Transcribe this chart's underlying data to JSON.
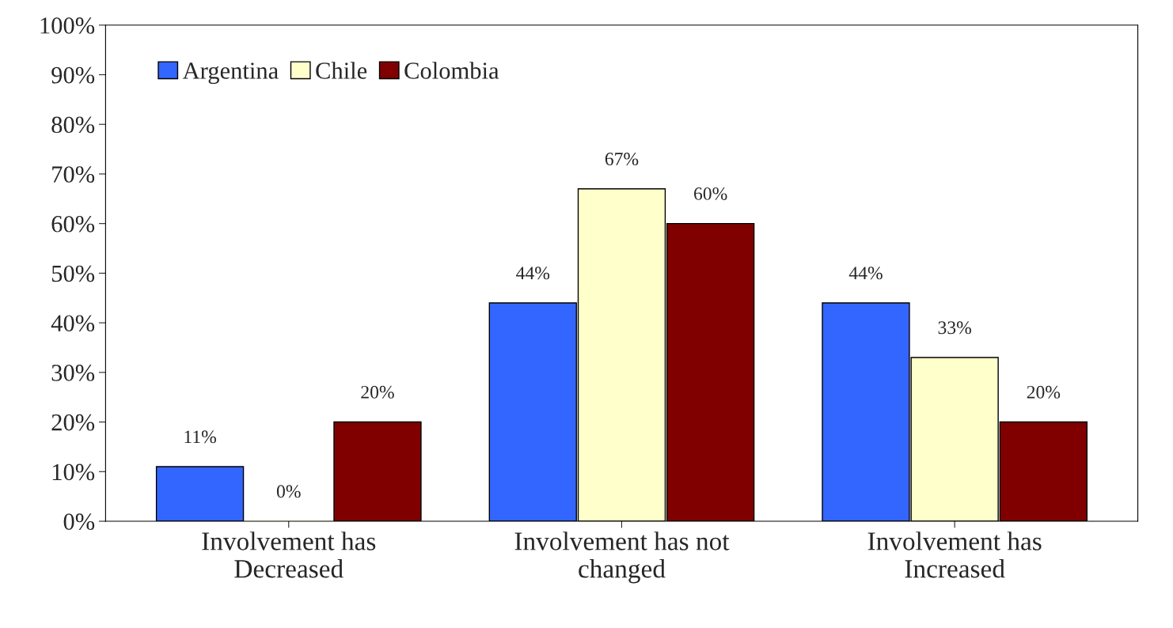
{
  "chart_data": {
    "type": "bar",
    "categories": [
      "Involvement has\nDecreased",
      "Involvement has not\nchanged",
      "Involvement has\nIncreased"
    ],
    "series": [
      {
        "name": "Argentina",
        "color": "#3366ff",
        "values": [
          11,
          44,
          44
        ],
        "value_labels": [
          "11%",
          "44%",
          "44%"
        ]
      },
      {
        "name": "Chile",
        "color": "#ffffcc",
        "values": [
          0,
          67,
          33
        ],
        "value_labels": [
          "0%",
          "67%",
          "33%"
        ]
      },
      {
        "name": "Colombia",
        "color": "#800000",
        "values": [
          20,
          60,
          20
        ],
        "value_labels": [
          "20%",
          "60%",
          "20%"
        ]
      }
    ],
    "ylim": [
      0,
      100
    ],
    "yticks": [
      {
        "value": 0,
        "label": "0%"
      },
      {
        "value": 10,
        "label": "10%"
      },
      {
        "value": 20,
        "label": "20%"
      },
      {
        "value": 30,
        "label": "30%"
      },
      {
        "value": 40,
        "label": "40%"
      },
      {
        "value": 50,
        "label": "50%"
      },
      {
        "value": 60,
        "label": "60%"
      },
      {
        "value": 70,
        "label": "70%"
      },
      {
        "value": 80,
        "label": "80%"
      },
      {
        "value": 90,
        "label": "90%"
      },
      {
        "value": 100,
        "label": "100%"
      }
    ],
    "legend": "top left",
    "grid": false
  }
}
